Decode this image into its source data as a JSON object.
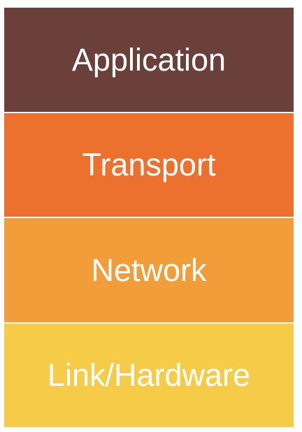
{
  "diagram": {
    "layers": [
      {
        "label": "Application",
        "color": "#6b3f3a"
      },
      {
        "label": "Transport",
        "color": "#ec702e"
      },
      {
        "label": "Network",
        "color": "#f09d3a"
      },
      {
        "label": "Link/Hardware",
        "color": "#f6cb48"
      }
    ]
  }
}
